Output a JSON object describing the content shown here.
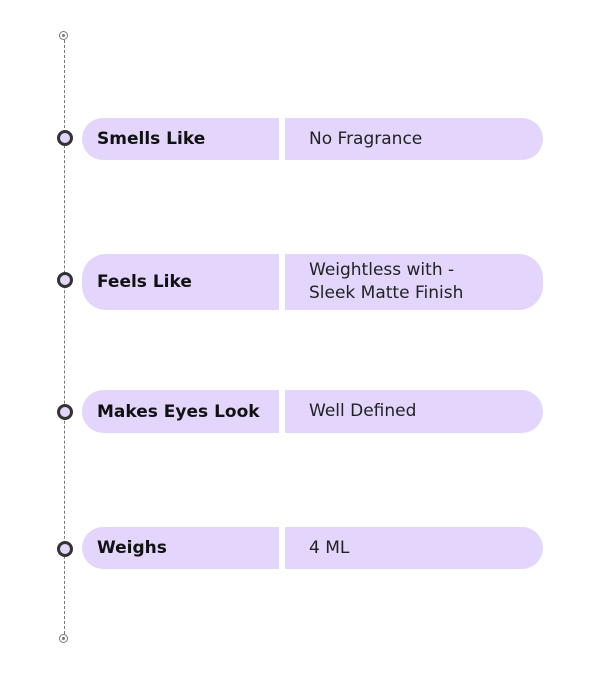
{
  "rows": [
    {
      "label": "Smells Like",
      "value": "No Fragrance"
    },
    {
      "label": "Feels Like",
      "value": "Weightless with - Sleek Matte Finish"
    },
    {
      "label": "Makes Eyes Look",
      "value": "Well Defined"
    },
    {
      "label": "Weighs",
      "value": "4 ML"
    }
  ],
  "colors": {
    "pill": "#e3d5fb",
    "dot_border": "#333333"
  }
}
